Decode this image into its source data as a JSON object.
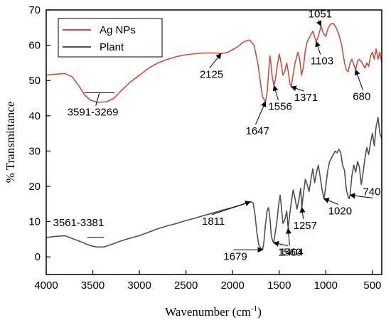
{
  "chart_data": {
    "type": "line",
    "xlabel": "Wavenumber (cm",
    "xlabel_sup": "-1",
    "xlabel_close": ")",
    "ylabel": "% Transmittance",
    "xlim": [
      4000,
      400
    ],
    "ylim": [
      -5,
      70
    ],
    "x_reversed": true,
    "x_ticks": [
      4000,
      3500,
      3000,
      2500,
      2000,
      1500,
      1000,
      500
    ],
    "y_ticks": [
      0,
      10,
      20,
      30,
      40,
      50,
      60,
      70
    ],
    "grid": false,
    "legend_position": "top-left",
    "series": [
      {
        "name": "Ag NPs",
        "color": "#c8513c",
        "points": [
          [
            4000,
            51.5
          ],
          [
            3900,
            51.8
          ],
          [
            3800,
            52.0
          ],
          [
            3720,
            51.0
          ],
          [
            3650,
            48.5
          ],
          [
            3591,
            46.0
          ],
          [
            3530,
            44.5
          ],
          [
            3450,
            43.8
          ],
          [
            3350,
            44.0
          ],
          [
            3269,
            45.0
          ],
          [
            3200,
            47.0
          ],
          [
            3100,
            49.5
          ],
          [
            3000,
            51.5
          ],
          [
            2900,
            53.5
          ],
          [
            2800,
            55.0
          ],
          [
            2700,
            56.0
          ],
          [
            2600,
            56.8
          ],
          [
            2500,
            57.3
          ],
          [
            2400,
            57.6
          ],
          [
            2300,
            57.8
          ],
          [
            2200,
            57.8
          ],
          [
            2125,
            57.6
          ],
          [
            2050,
            58.0
          ],
          [
            1950,
            59.5
          ],
          [
            1880,
            61.0
          ],
          [
            1820,
            61.5
          ],
          [
            1770,
            60.0
          ],
          [
            1730,
            55.0
          ],
          [
            1700,
            49.0
          ],
          [
            1680,
            45.5
          ],
          [
            1660,
            44.5
          ],
          [
            1647,
            44.0
          ],
          [
            1630,
            46.5
          ],
          [
            1615,
            52.0
          ],
          [
            1600,
            57.0
          ],
          [
            1590,
            55.0
          ],
          [
            1575,
            51.0
          ],
          [
            1556,
            48.5
          ],
          [
            1540,
            50.5
          ],
          [
            1520,
            54.5
          ],
          [
            1500,
            57.5
          ],
          [
            1480,
            55.0
          ],
          [
            1460,
            51.5
          ],
          [
            1440,
            52.5
          ],
          [
            1420,
            55.0
          ],
          [
            1400,
            52.0
          ],
          [
            1385,
            49.0
          ],
          [
            1371,
            48.2
          ],
          [
            1355,
            51.0
          ],
          [
            1330,
            55.0
          ],
          [
            1300,
            58.0
          ],
          [
            1280,
            56.0
          ],
          [
            1260,
            51.5
          ],
          [
            1240,
            54.0
          ],
          [
            1220,
            58.5
          ],
          [
            1200,
            61.0
          ],
          [
            1170,
            62.5
          ],
          [
            1140,
            64.0
          ],
          [
            1103,
            61.0
          ],
          [
            1080,
            62.5
          ],
          [
            1051,
            65.5
          ],
          [
            1030,
            63.5
          ],
          [
            1000,
            62.5
          ],
          [
            980,
            64.5
          ],
          [
            950,
            66.0
          ],
          [
            920,
            66.2
          ],
          [
            890,
            65.0
          ],
          [
            860,
            63.0
          ],
          [
            830,
            60.0
          ],
          [
            800,
            55.0
          ],
          [
            780,
            53.0
          ],
          [
            760,
            52.5
          ],
          [
            740,
            55.0
          ],
          [
            720,
            56.0
          ],
          [
            700,
            54.5
          ],
          [
            680,
            53.0
          ],
          [
            660,
            55.5
          ],
          [
            640,
            56.0
          ],
          [
            610,
            55.0
          ],
          [
            580,
            53.5
          ],
          [
            560,
            55.0
          ],
          [
            540,
            54.0
          ],
          [
            520,
            57.0
          ],
          [
            500,
            58.0
          ],
          [
            480,
            56.0
          ],
          [
            460,
            59.0
          ],
          [
            440,
            56.0
          ],
          [
            420,
            58.0
          ],
          [
            400,
            55.0
          ]
        ]
      },
      {
        "name": "Plant",
        "color": "#505050",
        "points": [
          [
            4000,
            5.5
          ],
          [
            3900,
            5.8
          ],
          [
            3800,
            6.0
          ],
          [
            3700,
            5.0
          ],
          [
            3600,
            4.0
          ],
          [
            3561,
            3.5
          ],
          [
            3500,
            3.0
          ],
          [
            3450,
            2.8
          ],
          [
            3381,
            2.8
          ],
          [
            3300,
            3.5
          ],
          [
            3200,
            4.5
          ],
          [
            3100,
            5.3
          ],
          [
            3000,
            6.0
          ],
          [
            2900,
            7.0
          ],
          [
            2800,
            8.0
          ],
          [
            2700,
            8.8
          ],
          [
            2600,
            9.5
          ],
          [
            2500,
            10.3
          ],
          [
            2400,
            11.0
          ],
          [
            2300,
            11.8
          ],
          [
            2200,
            12.5
          ],
          [
            2100,
            13.3
          ],
          [
            2000,
            14.0
          ],
          [
            1900,
            14.8
          ],
          [
            1850,
            15.3
          ],
          [
            1811,
            15.6
          ],
          [
            1780,
            15.3
          ],
          [
            1760,
            12.0
          ],
          [
            1740,
            7.0
          ],
          [
            1720,
            3.5
          ],
          [
            1700,
            2.5
          ],
          [
            1690,
            2.2
          ],
          [
            1679,
            2.0
          ],
          [
            1665,
            4.0
          ],
          [
            1650,
            8.5
          ],
          [
            1630,
            13.0
          ],
          [
            1615,
            14.0
          ],
          [
            1600,
            11.0
          ],
          [
            1585,
            6.0
          ],
          [
            1570,
            4.5
          ],
          [
            1560,
            4.0
          ],
          [
            1545,
            6.5
          ],
          [
            1525,
            10.0
          ],
          [
            1505,
            15.0
          ],
          [
            1490,
            17.5
          ],
          [
            1475,
            13.5
          ],
          [
            1460,
            9.5
          ],
          [
            1440,
            10.5
          ],
          [
            1420,
            13.0
          ],
          [
            1404,
            8.0
          ],
          [
            1390,
            11.5
          ],
          [
            1370,
            15.5
          ],
          [
            1350,
            19.0
          ],
          [
            1330,
            16.5
          ],
          [
            1310,
            13.5
          ],
          [
            1290,
            16.0
          ],
          [
            1270,
            19.5
          ],
          [
            1257,
            14.0
          ],
          [
            1240,
            18.0
          ],
          [
            1220,
            22.0
          ],
          [
            1200,
            20.5
          ],
          [
            1180,
            18.5
          ],
          [
            1160,
            22.0
          ],
          [
            1140,
            25.0
          ],
          [
            1120,
            21.0
          ],
          [
            1100,
            24.0
          ],
          [
            1080,
            26.0
          ],
          [
            1060,
            22.5
          ],
          [
            1040,
            19.0
          ],
          [
            1020,
            16.5
          ],
          [
            1000,
            20.0
          ],
          [
            980,
            24.5
          ],
          [
            960,
            27.0
          ],
          [
            940,
            28.0
          ],
          [
            920,
            29.0
          ],
          [
            900,
            30.0
          ],
          [
            880,
            29.5
          ],
          [
            860,
            30.5
          ],
          [
            840,
            29.5
          ],
          [
            820,
            26.0
          ],
          [
            800,
            24.5
          ],
          [
            780,
            19.0
          ],
          [
            760,
            17.0
          ],
          [
            750,
            16.5
          ],
          [
            740,
            17.5
          ],
          [
            720,
            23.0
          ],
          [
            700,
            26.0
          ],
          [
            680,
            24.0
          ],
          [
            660,
            27.0
          ],
          [
            640,
            25.5
          ],
          [
            620,
            20.5
          ],
          [
            600,
            24.0
          ],
          [
            580,
            28.0
          ],
          [
            560,
            31.0
          ],
          [
            540,
            29.0
          ],
          [
            520,
            32.5
          ],
          [
            500,
            35.0
          ],
          [
            480,
            31.5
          ],
          [
            460,
            37.0
          ],
          [
            440,
            39.5
          ],
          [
            420,
            35.0
          ],
          [
            400,
            33.5
          ]
        ]
      }
    ],
    "annotations": [
      {
        "text": "3591-3269",
        "x": 3430,
        "y": 46.5,
        "kind": "bracket"
      },
      {
        "text": "2125",
        "x": 2125,
        "y": 57.6,
        "kind": "arrow"
      },
      {
        "text": "1647",
        "x": 1647,
        "y": 44.0,
        "kind": "arrow"
      },
      {
        "text": "1556",
        "x": 1556,
        "y": 48.5,
        "kind": "arrow"
      },
      {
        "text": "1371",
        "x": 1371,
        "y": 48.2,
        "kind": "arrow"
      },
      {
        "text": "1051",
        "x": 1051,
        "y": 65.5,
        "kind": "arrow"
      },
      {
        "text": "1103",
        "x": 1103,
        "y": 61.0,
        "kind": "arrow"
      },
      {
        "text": "680",
        "x": 680,
        "y": 53.0,
        "kind": "arrow"
      },
      {
        "text": "3561-3381",
        "x": 3470,
        "y": 5.5,
        "kind": "bracket"
      },
      {
        "text": "1811",
        "x": 1811,
        "y": 15.6,
        "kind": "arrow"
      },
      {
        "text": "1679",
        "x": 1679,
        "y": 2.0,
        "kind": "arrow"
      },
      {
        "text": "1560",
        "x": 1560,
        "y": 4.0,
        "kind": "arrow"
      },
      {
        "text": "1404",
        "x": 1404,
        "y": 8.0,
        "kind": "arrow"
      },
      {
        "text": "1257",
        "x": 1257,
        "y": 14.0,
        "kind": "arrow"
      },
      {
        "text": "1020",
        "x": 1020,
        "y": 16.5,
        "kind": "arrow"
      },
      {
        "text": "740",
        "x": 740,
        "y": 17.5,
        "kind": "arrow"
      }
    ]
  }
}
